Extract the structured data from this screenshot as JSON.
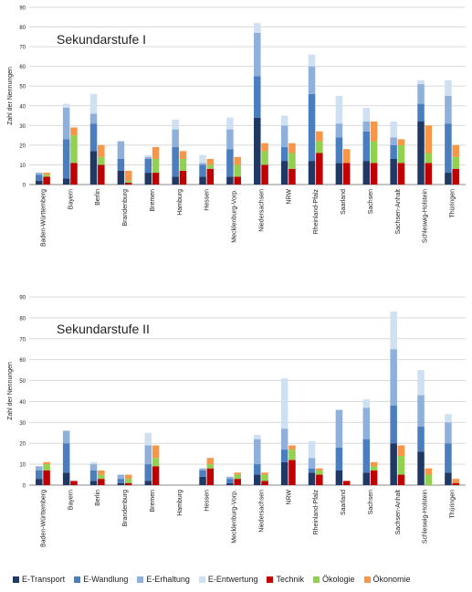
{
  "colors": {
    "E-Transport": "#1f3864",
    "E-Wandlung": "#4a7ebf",
    "E-Erhaltung": "#8eb0da",
    "E-Entwertung": "#cfe0f2",
    "Technik": "#c00000",
    "Ökologie": "#92d050",
    "Ökonomie": "#f79646"
  },
  "legend": [
    "E-Transport",
    "E-Wandlung",
    "E-Erhaltung",
    "E-Entwertung",
    "Technik",
    "Ökologie",
    "Ökonomie"
  ],
  "chart_data": [
    {
      "type": "bar",
      "title": "Sekundarstufe I",
      "ylabel": "Zahl der Nennungen",
      "ylim": [
        0,
        90
      ],
      "yticks": [
        0,
        10,
        20,
        30,
        40,
        50,
        60,
        70,
        80,
        90
      ],
      "grid": true,
      "stacking": "two stacked bars per category: E-stack (E-Transport, E-Wandlung, E-Erhaltung, E-Entwertung) and T-stack (Technik, Ökologie, Ökonomie)",
      "categories": [
        "Baden-Württemberg",
        "Bayern",
        "Berlin",
        "Brandenburg",
        "Bremen",
        "Hamburg",
        "Hessen",
        "Mecklenburg-Vorp.",
        "Niedersachsen",
        "NRW",
        "Rheinland-Pfalz",
        "Saarland",
        "Sachsen",
        "Sachsen-Anhalt",
        "Schleswig-Holstein",
        "Thüringen"
      ],
      "series": [
        {
          "name": "E-Transport",
          "stack": "E",
          "values": [
            2,
            3,
            17,
            7,
            6,
            4,
            4,
            4,
            34,
            12,
            12,
            11,
            12,
            13,
            32,
            6
          ]
        },
        {
          "name": "E-Wandlung",
          "stack": "E",
          "values": [
            3,
            20,
            14,
            6,
            7,
            15,
            6,
            14,
            21,
            7,
            34,
            13,
            15,
            7,
            9,
            25
          ]
        },
        {
          "name": "E-Erhaltung",
          "stack": "E",
          "values": [
            1,
            16,
            5,
            9,
            1,
            9,
            1,
            10,
            22,
            11,
            14,
            7,
            5,
            4,
            10,
            14
          ]
        },
        {
          "name": "E-Entwertung",
          "stack": "E",
          "values": [
            0,
            2,
            10,
            0,
            1,
            5,
            4,
            6,
            5,
            5,
            6,
            14,
            7,
            8,
            2,
            8
          ]
        },
        {
          "name": "Technik",
          "stack": "T",
          "values": [
            4,
            11,
            10,
            1,
            6,
            7,
            8,
            4,
            10,
            8,
            16,
            11,
            11,
            11,
            11,
            8
          ]
        },
        {
          "name": "Ökologie",
          "stack": "T",
          "values": [
            1,
            14,
            4,
            1,
            7,
            6,
            2,
            6,
            7,
            8,
            6,
            0,
            11,
            9,
            5,
            6
          ]
        },
        {
          "name": "Ökonomie",
          "stack": "T",
          "values": [
            1,
            4,
            6,
            5,
            6,
            4,
            3,
            4,
            4,
            5,
            5,
            7,
            10,
            3,
            14,
            6
          ]
        }
      ]
    },
    {
      "type": "bar",
      "title": "Sekundarstufe II",
      "ylabel": "Zahl der Nennungen",
      "ylim": [
        0,
        90
      ],
      "yticks": [
        0,
        10,
        20,
        30,
        40,
        50,
        60,
        70,
        80,
        90
      ],
      "grid": true,
      "stacking": "two stacked bars per category: E-stack (E-Transport, E-Wandlung, E-Erhaltung, E-Entwertung) and T-stack (Technik, Ökologie, Ökonomie)",
      "categories": [
        "Baden-Württemberg",
        "Bayern",
        "Berlin",
        "Brandenburg",
        "Bremen",
        "Hamburg",
        "Hessen",
        "Mecklenburg-Vorp.",
        "Niedersachsen",
        "NRW",
        "Rheinland-Pfalz",
        "Saarland",
        "Sachsen",
        "Sachsen-Anhalt",
        "Schleswig-Holstein",
        "Thüringen"
      ],
      "series": [
        {
          "name": "E-Transport",
          "stack": "E",
          "values": [
            3,
            6,
            2,
            1,
            2,
            0,
            4,
            1,
            5,
            11,
            6,
            7,
            6,
            20,
            16,
            6
          ]
        },
        {
          "name": "E-Wandlung",
          "stack": "E",
          "values": [
            4,
            14,
            5,
            2,
            8,
            0,
            3,
            2,
            5,
            6,
            2,
            11,
            16,
            18,
            12,
            14
          ]
        },
        {
          "name": "E-Erhaltung",
          "stack": "E",
          "values": [
            2,
            6,
            3,
            2,
            9,
            0,
            1,
            1,
            12,
            10,
            5,
            18,
            15,
            27,
            15,
            10
          ]
        },
        {
          "name": "E-Entwertung",
          "stack": "E",
          "values": [
            0,
            0,
            1,
            0,
            6,
            0,
            0,
            0,
            2,
            24,
            8,
            0,
            4,
            18,
            12,
            4
          ]
        },
        {
          "name": "Technik",
          "stack": "T",
          "values": [
            7,
            2,
            3,
            1,
            9,
            0,
            8,
            3,
            2,
            12,
            5,
            2,
            7,
            5,
            0,
            1
          ]
        },
        {
          "name": "Ökologie",
          "stack": "T",
          "values": [
            3,
            0,
            2,
            2,
            4,
            0,
            2,
            2,
            3,
            5,
            2,
            0,
            2,
            9,
            5,
            0
          ]
        },
        {
          "name": "Ökonomie",
          "stack": "T",
          "values": [
            1,
            0,
            2,
            2,
            6,
            0,
            3,
            1,
            1,
            2,
            1,
            0,
            2,
            5,
            3,
            2
          ]
        }
      ]
    }
  ]
}
